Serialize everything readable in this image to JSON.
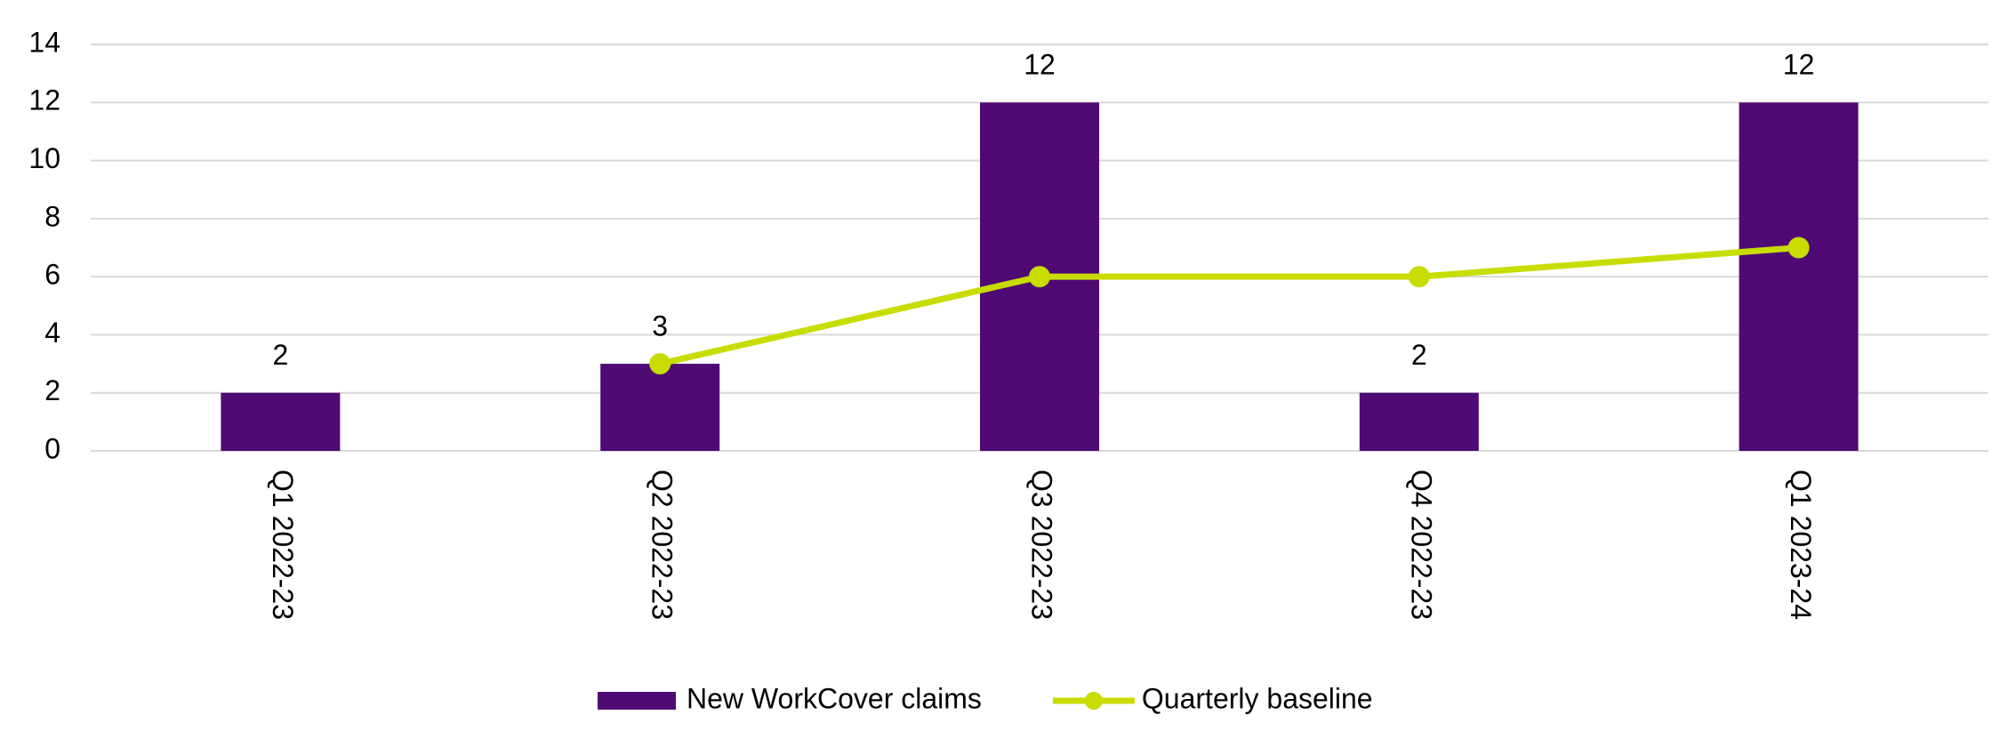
{
  "chart_data": {
    "type": "bar-line",
    "categories": [
      "Q1 2022-23",
      "Q2 2022-23",
      "Q3 2022-23",
      "Q4 2022-23",
      "Q1 2023-24"
    ],
    "series": [
      {
        "name": "New WorkCover claims",
        "type": "bar",
        "color": "#4f0a74",
        "values": [
          2,
          3,
          12,
          2,
          12
        ]
      },
      {
        "name": "Quarterly baseline",
        "type": "line",
        "color": "#c8dc00",
        "values": [
          null,
          3,
          6,
          6,
          7
        ]
      }
    ],
    "ylim": [
      0,
      14
    ],
    "yticks": [
      0,
      2,
      4,
      6,
      8,
      10,
      12,
      14
    ],
    "grid": true,
    "legend": "bottom"
  }
}
